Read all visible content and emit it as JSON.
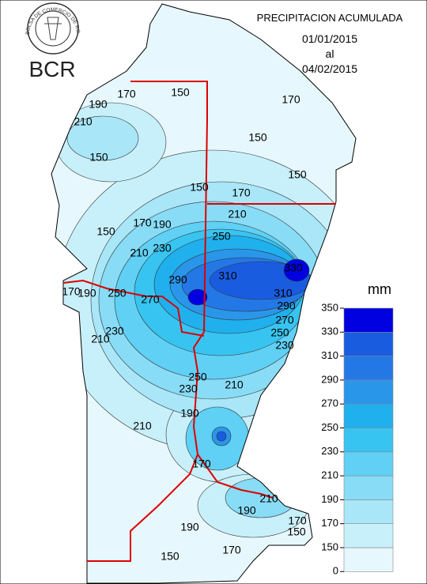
{
  "header": {
    "logo_ring": "BOLSA DE COMERCIO DE ROSARIO",
    "logo": "BCR",
    "title": "PRECIPITACION ACUMULADA",
    "date_from": "01/01/2015",
    "date_sep": "al",
    "date_to": "04/02/2015"
  },
  "legend": {
    "unit": "mm",
    "ticks": [
      0,
      150,
      170,
      190,
      210,
      230,
      250,
      270,
      290,
      310,
      330,
      350
    ],
    "colors": [
      "#e6f8fd",
      "#c8f0fb",
      "#a8e6f8",
      "#88dcf6",
      "#60d0f4",
      "#38c4f0",
      "#20b0ee",
      "#2a96ea",
      "#2478e6",
      "#1a5ce0",
      "#0000e0"
    ]
  },
  "contour_labels": [
    150,
    170,
    190,
    210,
    170,
    150,
    150,
    150,
    150,
    170,
    210,
    170,
    190,
    150,
    250,
    210,
    230,
    290,
    310,
    330,
    170,
    190,
    250,
    270,
    310,
    290,
    270,
    250,
    230,
    230,
    210,
    250,
    230,
    210,
    190,
    210,
    170,
    210,
    190,
    170,
    150,
    190,
    150,
    170
  ]
}
